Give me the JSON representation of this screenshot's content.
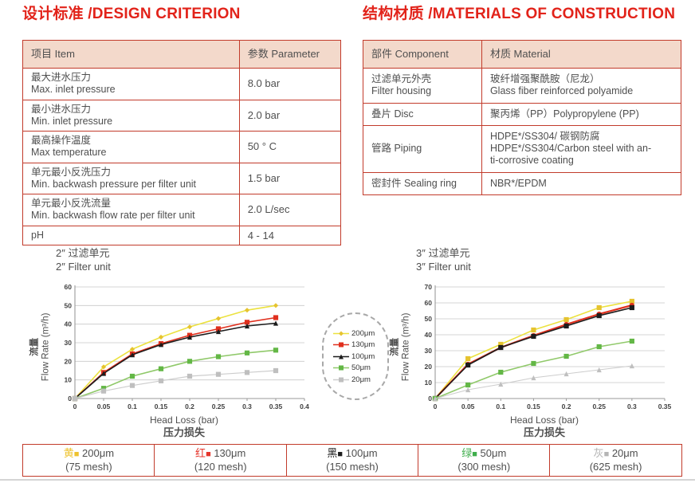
{
  "design": {
    "title": "设计标准 /DESIGN CRITERION",
    "table": {
      "headers": [
        "项目 Item",
        "参数 Parameter"
      ],
      "col_widths": [
        "70%",
        "30%"
      ],
      "rows": [
        [
          [
            "最大进水压力",
            "Max. inlet pressure"
          ],
          [
            "8.0 bar"
          ]
        ],
        [
          [
            "最小进水压力",
            "Min. inlet pressure"
          ],
          [
            "2.0 bar"
          ]
        ],
        [
          [
            "最高操作温度",
            "Max temperature"
          ],
          [
            "50 ° C"
          ]
        ],
        [
          [
            "单元最小反洗压力",
            "Min. backwash pressure per filter unit"
          ],
          [
            "1.5 bar"
          ]
        ],
        [
          [
            "单元最小反洗流量",
            "Min. backwash flow rate per filter unit"
          ],
          [
            "2.0 L/sec"
          ]
        ],
        [
          [
            "pH"
          ],
          [
            "4 - 14"
          ]
        ]
      ]
    }
  },
  "materials": {
    "title": "结构材质 /MATERIALS OF CONSTRUCTION",
    "table": {
      "headers": [
        "部件 Component",
        "材质 Material"
      ],
      "col_widths": [
        "36%",
        "64%"
      ],
      "rows": [
        [
          [
            "过滤单元外壳",
            "Filter housing"
          ],
          [
            "玻纤增强聚酰胺（尼龙）",
            "Glass fiber reinforced polyamide"
          ]
        ],
        [
          [
            "叠片 Disc"
          ],
          [
            "聚丙烯（PP）Polypropylene (PP)"
          ]
        ],
        [
          [
            "管路 Piping"
          ],
          [
            "HDPE*/SS304/ 碳钢防腐",
            "HDPE*/SS304/Carbon steel with an-",
            "ti-corrosive coating"
          ]
        ],
        [
          [
            "密封件 Sealing ring"
          ],
          [
            "NBR*/EPDM"
          ]
        ]
      ]
    }
  },
  "chart_data": [
    {
      "type": "line",
      "title_zh": "2″ 过滤单元",
      "title_en": "2″ Filter unit",
      "ylabel_zh": "流量",
      "ylabel_en": "Flow Rate (m³/h)",
      "xlabel_en": "Head Loss (bar)",
      "xlabel_zh": "压力损失",
      "xlim": [
        0,
        0.4
      ],
      "ylim": [
        0,
        60
      ],
      "xticks": [
        0,
        0.05,
        0.1,
        0.15,
        0.2,
        0.25,
        0.3,
        0.35,
        0.4
      ],
      "yticks": [
        0,
        10,
        20,
        30,
        40,
        50,
        60
      ],
      "grid": true,
      "legend_position": "right-outside",
      "x": [
        0,
        0.05,
        0.1,
        0.15,
        0.2,
        0.25,
        0.3,
        0.35
      ],
      "series": [
        {
          "name": "200μm",
          "color": "#ece23f",
          "marker_color": "#e6c32f",
          "marker": "diamond",
          "width": 1.6,
          "values": [
            0,
            17,
            26.5,
            33,
            38.5,
            43,
            47.5,
            50
          ]
        },
        {
          "name": "130μm",
          "color": "#e0301e",
          "marker_color": "#e0301e",
          "marker": "square",
          "width": 1.6,
          "values": [
            0,
            14,
            24,
            29.5,
            34,
            37.5,
            41,
            43.5
          ]
        },
        {
          "name": "100μm",
          "color": "#1c1c1c",
          "marker_color": "#1c1c1c",
          "marker": "triangle",
          "width": 1.6,
          "values": [
            0,
            13.5,
            23.5,
            29,
            33,
            36,
            39,
            40.5
          ]
        },
        {
          "name": "50μm",
          "color": "#90c96a",
          "marker_color": "#63b746",
          "marker": "square",
          "width": 1.6,
          "values": [
            0,
            5.5,
            12,
            16,
            20,
            22.5,
            24.5,
            26
          ]
        },
        {
          "name": "20μm",
          "color": "#cdcdcd",
          "marker_color": "#bfbfbf",
          "marker": "square",
          "width": 1.2,
          "values": [
            0,
            4,
            7,
            9.5,
            12,
            13,
            14,
            15
          ]
        }
      ]
    },
    {
      "type": "line",
      "title_zh": "3″ 过滤单元",
      "title_en": "3″ Filter unit",
      "ylabel_zh": "流量",
      "ylabel_en": "Flow Rate (m³/h)",
      "xlabel_en": "Head Loss (bar)",
      "xlabel_zh": "压力损失",
      "xlim": [
        0,
        0.35
      ],
      "ylim": [
        0,
        70
      ],
      "xticks": [
        0,
        0.05,
        0.1,
        0.15,
        0.2,
        0.25,
        0.3,
        0.35
      ],
      "yticks": [
        0,
        10,
        20,
        30,
        40,
        50,
        60,
        70
      ],
      "grid": true,
      "legend_position": "none",
      "x": [
        0,
        0.05,
        0.1,
        0.15,
        0.2,
        0.25,
        0.3
      ],
      "series": [
        {
          "name": "200μm",
          "color": "#ece23f",
          "marker_color": "#e6c32f",
          "marker": "square",
          "width": 1.6,
          "values": [
            0,
            25,
            34,
            43,
            49.5,
            57,
            61
          ]
        },
        {
          "name": "130μm",
          "color": "#e0301e",
          "marker_color": "#e0301e",
          "marker": "circle",
          "width": 2.2,
          "values": [
            0,
            21.5,
            32,
            39.5,
            46.5,
            53,
            58.5
          ]
        },
        {
          "name": "100μm",
          "color": "#1c1c1c",
          "marker_color": "#1c1c1c",
          "marker": "square",
          "width": 1.6,
          "values": [
            0,
            21,
            32,
            39,
            45.5,
            52,
            57
          ]
        },
        {
          "name": "50μm",
          "color": "#90c96a",
          "marker_color": "#63b746",
          "marker": "square",
          "width": 1.6,
          "values": [
            0,
            8.5,
            16.5,
            22,
            26.5,
            32.5,
            36
          ]
        },
        {
          "name": "20μm",
          "color": "#cdcdcd",
          "marker_color": "#bfbfbf",
          "marker": "triangle",
          "width": 1.1,
          "values": [
            0,
            5.5,
            9,
            13,
            15.5,
            18,
            20.5
          ]
        }
      ]
    }
  ],
  "chart_legend": {
    "items": [
      {
        "label": "200μm",
        "color": "#e6c32f",
        "line": "#ece23f",
        "marker": "diamond"
      },
      {
        "label": "130μm",
        "color": "#e0301e",
        "line": "#e0301e",
        "marker": "square"
      },
      {
        "label": "100μm",
        "color": "#1c1c1c",
        "line": "#1c1c1c",
        "marker": "triangle"
      },
      {
        "label": "50μm",
        "color": "#63b746",
        "line": "#90c96a",
        "marker": "square"
      },
      {
        "label": "20μm",
        "color": "#bfbfbf",
        "line": "#cdcdcd",
        "marker": "square"
      }
    ]
  },
  "bottom_legend": {
    "cells": [
      {
        "color_name": "黄",
        "color": "#eec22d",
        "size": "200μm",
        "mesh": "(75 mesh)"
      },
      {
        "color_name": "红",
        "color": "#e5352b",
        "size": "130μm",
        "mesh": "(120 mesh)"
      },
      {
        "color_name": "黑",
        "color": "#1c1c1c",
        "size": "100μm",
        "mesh": "(150 mesh)"
      },
      {
        "color_name": "绿",
        "color": "#3fae4c",
        "size": "50μm",
        "mesh": "(300 mesh)"
      },
      {
        "color_name": "灰",
        "color": "#b5b5b5",
        "size": "20μm",
        "mesh": "(625 mesh)"
      }
    ]
  },
  "colors": {
    "heading": "#e2231a",
    "table_border": "#c23b2b",
    "table_header_bg": "#f3d9cb",
    "grid": "#c8c8c8",
    "axis": "#9a9a9a",
    "text": "#4f4f4f"
  }
}
